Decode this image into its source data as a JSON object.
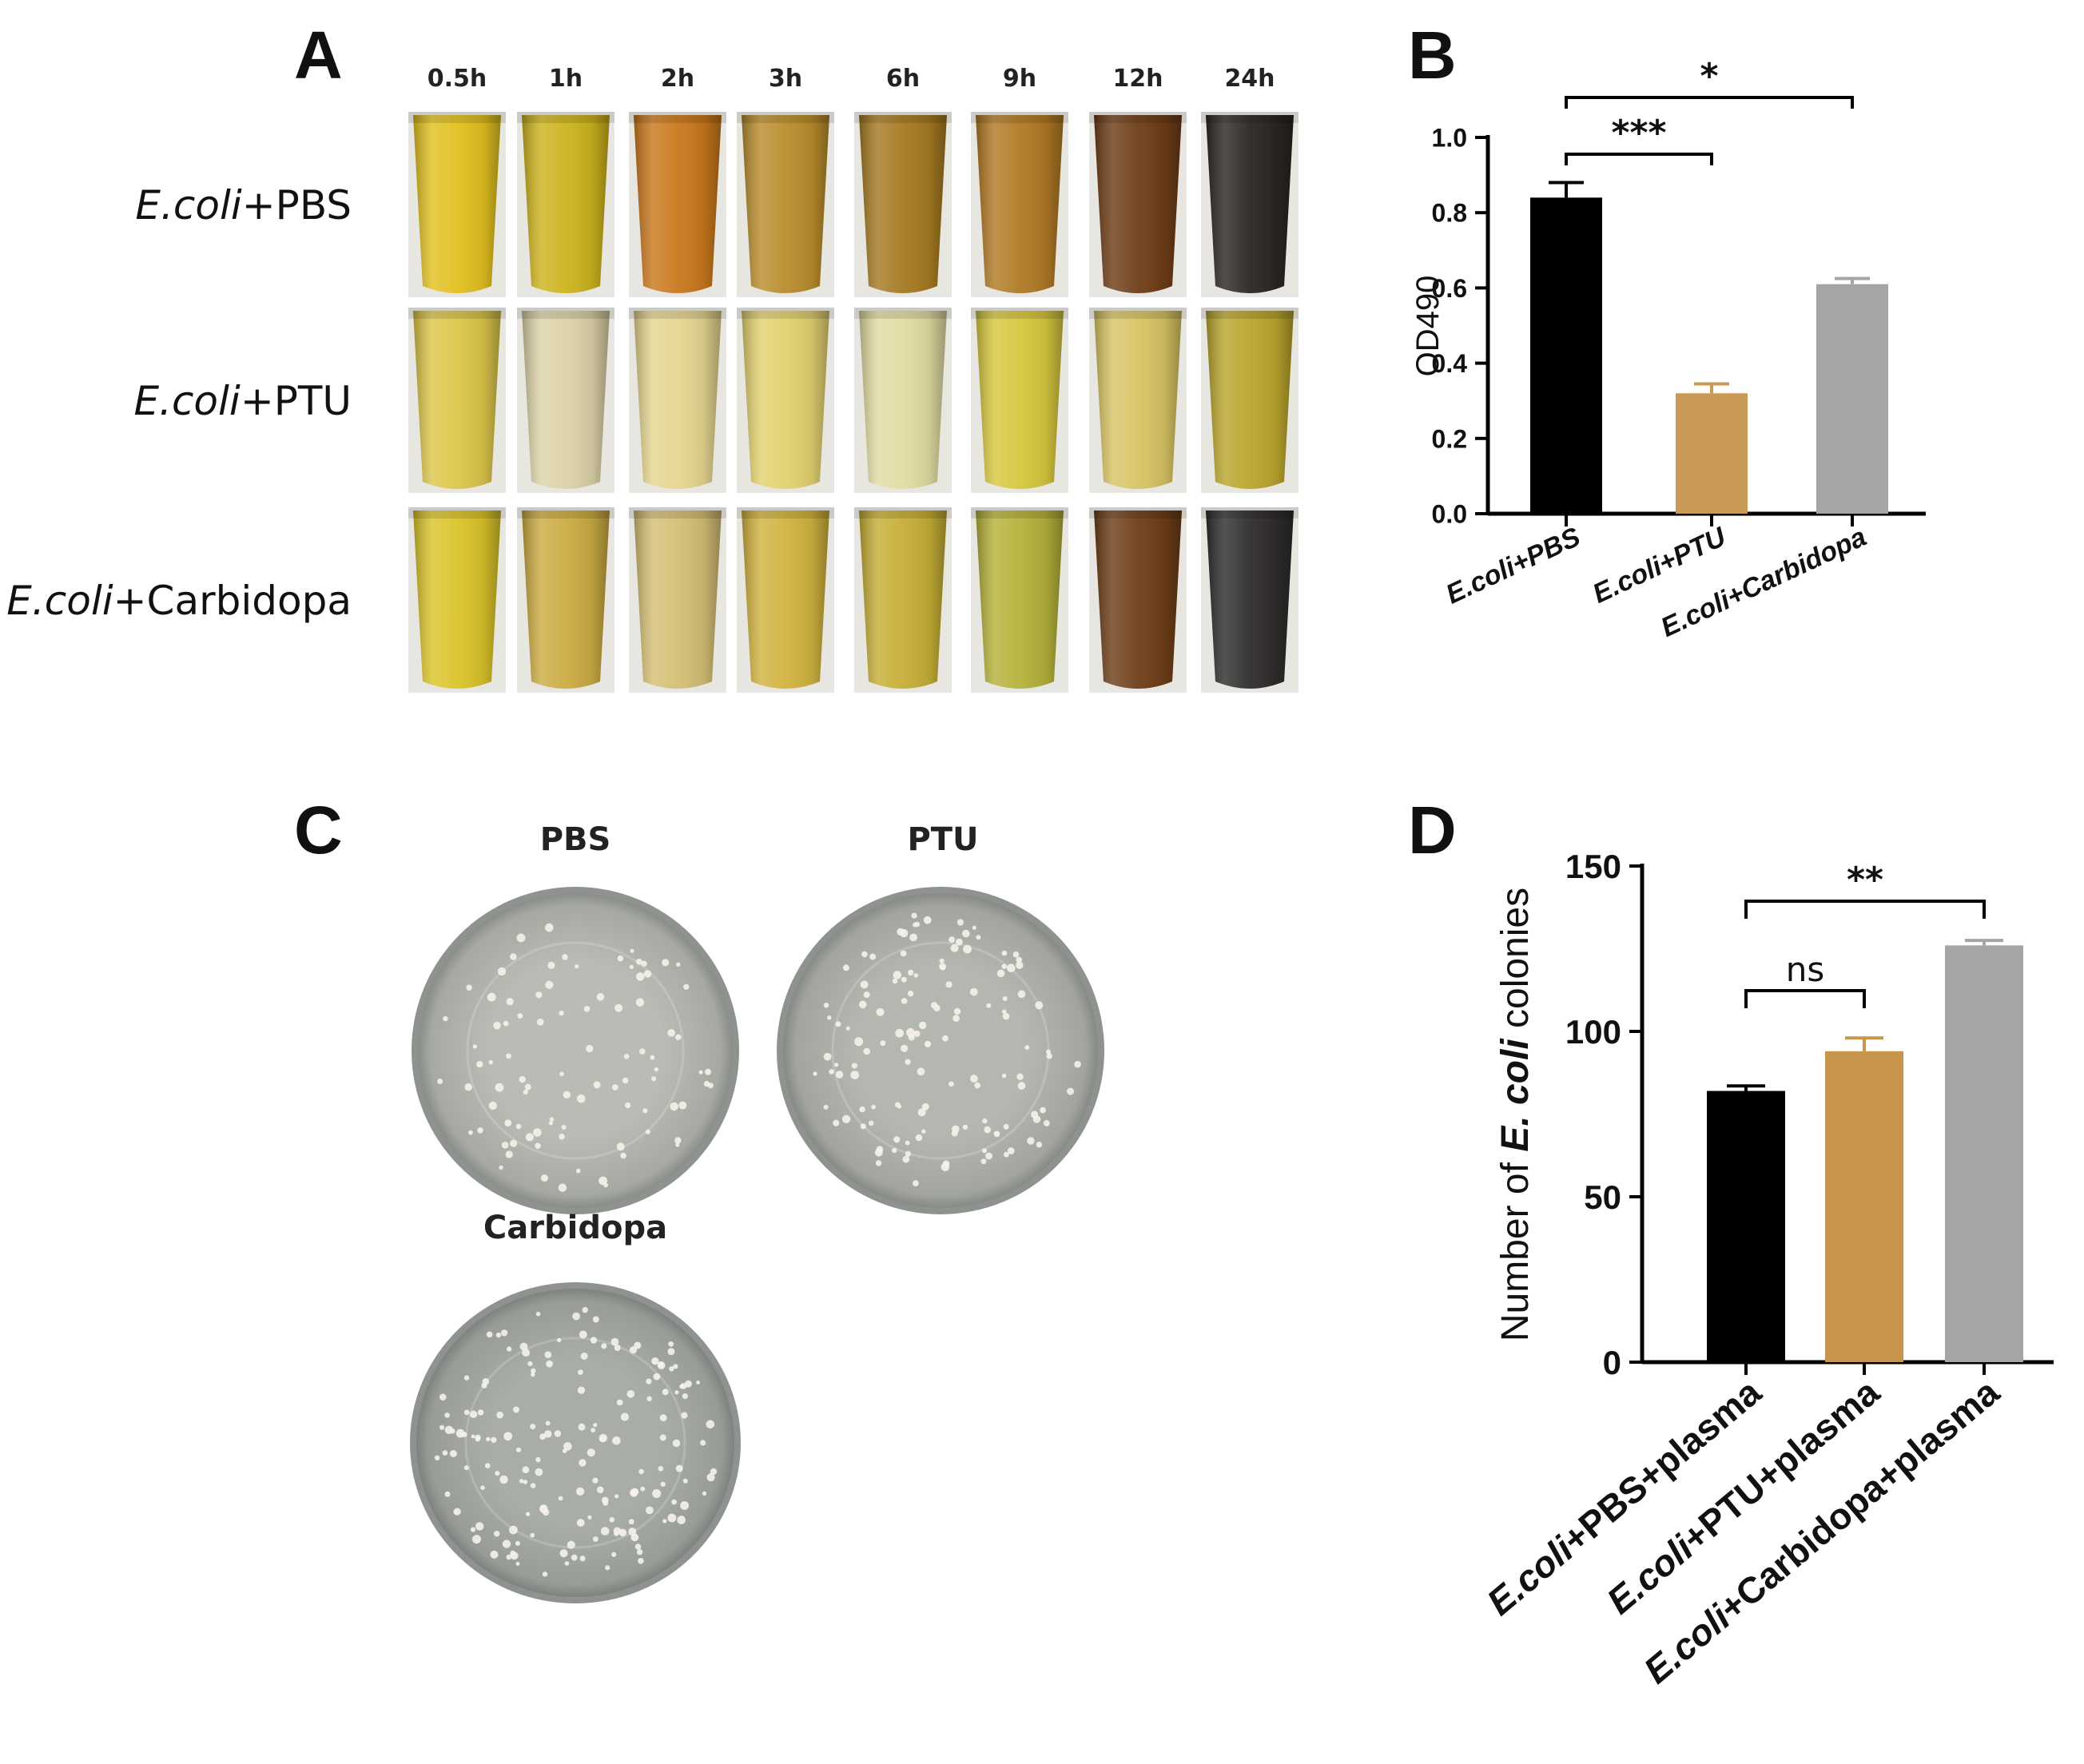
{
  "figure": {
    "panels": [
      "A",
      "B",
      "C",
      "D"
    ],
    "panel_a": {
      "time_headers": [
        "0.5h",
        "1h",
        "2h",
        "3h",
        "6h",
        "9h",
        "12h",
        "24h"
      ],
      "rows": [
        {
          "italic": "E.coli",
          "rest": "+PBS",
          "colors": [
            "#e2c020",
            "#cdb31e",
            "#c9781c",
            "#b98d2d",
            "#a57a22",
            "#b07a25",
            "#6e3d16",
            "#2b2622"
          ]
        },
        {
          "italic": "E.coli",
          "rest": "+PTU",
          "colors": [
            "#dcc64a",
            "#dcd2a8",
            "#e6d690",
            "#e3d270",
            "#e2dca2",
            "#d7c73e",
            "#d8c464",
            "#b9a52c"
          ]
        },
        {
          "italic": "E.coli",
          "rest": "+Carbidopa",
          "colors": [
            "#dbc42a",
            "#cbab42",
            "#d4bf74",
            "#d1b33e",
            "#c6ae35",
            "#b5b23a",
            "#6e3e17",
            "#2f2c2c"
          ]
        }
      ]
    },
    "panel_c": {
      "plates": [
        {
          "label": "PBS",
          "dish_color": "#b8bcb4"
        },
        {
          "label": "PTU",
          "dish_color": "#b4b7b0"
        },
        {
          "label": "Carbidopa",
          "dish_color": "#a9ada8"
        }
      ]
    }
  },
  "chart_data": [
    {
      "type": "bar",
      "panel": "B",
      "categories": [
        "E.coli+PBS",
        "E.coli+PTU",
        "E.coli+Carbidopa"
      ],
      "values": [
        0.84,
        0.32,
        0.61
      ],
      "errors": [
        0.04,
        0.025,
        0.015
      ],
      "colors": [
        "#000000",
        "#c99a55",
        "#a5a5a8"
      ],
      "title": "",
      "xlabel": "",
      "ylabel": "OD490",
      "ylim": [
        0,
        1.0
      ],
      "yticks": [
        "0.0",
        "0.2",
        "0.4",
        "0.6",
        "0.8",
        "1.0"
      ],
      "significance": [
        {
          "from": 0,
          "to": 1,
          "label": "***"
        },
        {
          "from": 0,
          "to": 2,
          "label": "*"
        }
      ]
    },
    {
      "type": "bar",
      "panel": "D",
      "categories": [
        "E.coli+PBS+plasma",
        "E.coli+PTU+plasma",
        "E.coli+Carbidopa+plasma"
      ],
      "category_parts": [
        {
          "italic": "E.coli",
          "rest": "+PBS+plasma"
        },
        {
          "italic": "E.coli",
          "rest": "+PTU+plasma"
        },
        {
          "italic": "E.coli",
          "rest": "+Carbidopa+plasma"
        }
      ],
      "values": [
        82,
        94,
        126
      ],
      "errors": [
        1.5,
        4,
        1.5
      ],
      "colors": [
        "#000000",
        "#c8954d",
        "#a5a5a8"
      ],
      "title": "",
      "xlabel": "",
      "ylabel_parts": {
        "pre": "Number of ",
        "italic": "E. coli",
        "post": " colonies"
      },
      "ylim": [
        0,
        150
      ],
      "yticks": [
        "0",
        "50",
        "100",
        "150"
      ],
      "significance": [
        {
          "from": 0,
          "to": 1,
          "label": "ns"
        },
        {
          "from": 0,
          "to": 2,
          "label": "**"
        }
      ]
    }
  ]
}
